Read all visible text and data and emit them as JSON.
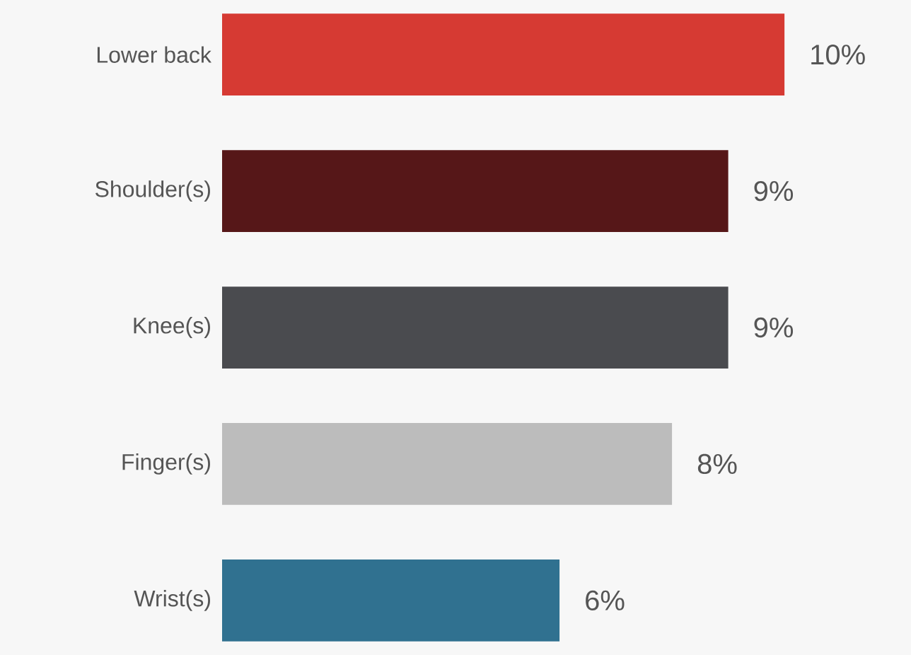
{
  "chart_data": {
    "type": "bar",
    "orientation": "horizontal",
    "categories": [
      "Lower back",
      "Shoulder(s)",
      "Knee(s)",
      "Finger(s)",
      "Wrist(s)"
    ],
    "values": [
      10,
      9,
      9,
      8,
      6
    ],
    "value_labels": [
      "10%",
      "9%",
      "9%",
      "8%",
      "6%"
    ],
    "colors": [
      "#d63a33",
      "#561718",
      "#4a4b4f",
      "#bcbcbc",
      "#307190"
    ]
  }
}
